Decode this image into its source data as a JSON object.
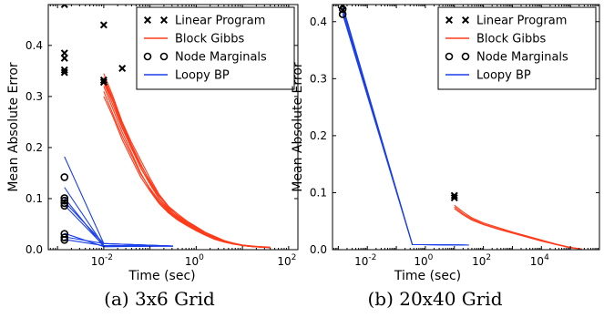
{
  "colors": {
    "linear_program": "#000000",
    "block_gibbs": "#ff3b1a",
    "node_marginals": "#000000",
    "loopy_bp": "#1a3fe8"
  },
  "chart_data": [
    {
      "type": "line",
      "caption": "(a) 3x6 Grid",
      "xlabel": "Time (sec)",
      "ylabel": "Mean Absolute Error",
      "xscale": "log",
      "xlim_log10": [
        -3.2,
        2.2
      ],
      "ylim": [
        0,
        0.48
      ],
      "xticks": [
        {
          "v": -2,
          "base": "10",
          "exp": "-2"
        },
        {
          "v": 0,
          "base": "10",
          "exp": "0"
        },
        {
          "v": 2,
          "base": "10",
          "exp": "2"
        }
      ],
      "yticks": [
        {
          "v": 0.0,
          "label": "0.0"
        },
        {
          "v": 0.1,
          "label": "0.1"
        },
        {
          "v": 0.2,
          "label": "0.2"
        },
        {
          "v": 0.3,
          "label": "0.3"
        },
        {
          "v": 0.4,
          "label": "0.4"
        }
      ],
      "legend": {
        "position": "top-right",
        "entries": [
          {
            "key": "linear_program",
            "label": "Linear Program",
            "style": "x"
          },
          {
            "key": "block_gibbs",
            "label": "Block Gibbs",
            "style": "line"
          },
          {
            "key": "node_marginals",
            "label": "Node Marginals",
            "style": "o"
          },
          {
            "key": "loopy_bp",
            "label": "Loopy BP",
            "style": "line"
          }
        ]
      },
      "linear_program": [
        [
          -2.85,
          0.48
        ],
        [
          -2.85,
          0.385
        ],
        [
          -2.85,
          0.375
        ],
        [
          -2.85,
          0.352
        ],
        [
          -2.85,
          0.347
        ],
        [
          -2.0,
          0.44
        ],
        [
          -2.0,
          0.332
        ],
        [
          -2.0,
          0.328
        ],
        [
          -1.6,
          0.355
        ]
      ],
      "node_marginals": [
        [
          -2.85,
          0.142
        ],
        [
          -2.85,
          0.101
        ],
        [
          -2.85,
          0.096
        ],
        [
          -2.85,
          0.091
        ],
        [
          -2.85,
          0.086
        ],
        [
          -2.85,
          0.031
        ],
        [
          -2.85,
          0.024
        ],
        [
          -2.85,
          0.019
        ]
      ],
      "loopy_bp": {
        "start_x": -2.85,
        "starts": [
          0.182,
          0.122,
          0.101,
          0.094,
          0.087,
          0.032,
          0.025,
          0.02
        ],
        "mid_x": -2.0,
        "mid_ys": [
          0.012,
          0.008,
          0.006
        ],
        "end_x": -0.5,
        "end_y": 0.007
      },
      "block_gibbs": {
        "x": [
          -2.0,
          -1.8,
          -1.6,
          -1.4,
          -1.2,
          -1.0,
          -0.8,
          -0.6,
          -0.4,
          -0.2,
          0.0,
          0.2,
          0.4,
          0.6,
          0.8,
          1.0,
          1.2,
          1.4,
          1.6
        ],
        "series": [
          [
            0.33,
            0.29,
            0.24,
            0.2,
            0.16,
            0.13,
            0.1,
            0.08,
            0.062,
            0.05,
            0.04,
            0.03,
            0.022,
            0.016,
            0.012,
            0.008,
            0.006,
            0.005,
            0.004
          ],
          [
            0.345,
            0.3,
            0.25,
            0.21,
            0.175,
            0.14,
            0.108,
            0.085,
            0.07,
            0.056,
            0.045,
            0.034,
            0.026,
            0.018,
            0.013,
            0.009,
            0.007,
            0.005,
            0.005
          ],
          [
            0.32,
            0.275,
            0.23,
            0.19,
            0.15,
            0.118,
            0.092,
            0.074,
            0.06,
            0.048,
            0.038,
            0.029,
            0.021,
            0.015,
            0.011,
            0.008,
            0.006,
            0.005,
            0.004
          ],
          [
            0.338,
            0.295,
            0.248,
            0.205,
            0.168,
            0.132,
            0.104,
            0.084,
            0.066,
            0.053,
            0.043,
            0.033,
            0.024,
            0.017,
            0.012,
            0.009,
            0.007,
            0.006,
            0.005
          ],
          [
            0.31,
            0.265,
            0.222,
            0.185,
            0.148,
            0.12,
            0.095,
            0.076,
            0.061,
            0.049,
            0.039,
            0.03,
            0.022,
            0.016,
            0.012,
            0.008,
            0.006,
            0.005,
            0.004
          ],
          [
            0.327,
            0.283,
            0.238,
            0.198,
            0.16,
            0.128,
            0.099,
            0.078,
            0.064,
            0.051,
            0.041,
            0.031,
            0.023,
            0.016,
            0.012,
            0.008,
            0.006,
            0.005,
            0.004
          ],
          [
            0.3,
            0.26,
            0.215,
            0.178,
            0.142,
            0.115,
            0.09,
            0.072,
            0.058,
            0.047,
            0.037,
            0.028,
            0.02,
            0.015,
            0.011,
            0.008,
            0.006,
            0.005,
            0.004
          ],
          [
            0.335,
            0.292,
            0.245,
            0.202,
            0.165,
            0.135,
            0.106,
            0.082,
            0.067,
            0.054,
            0.044,
            0.032,
            0.024,
            0.017,
            0.012,
            0.009,
            0.007,
            0.005,
            0.004
          ]
        ]
      }
    },
    {
      "type": "line",
      "caption": "(b) 20x40 Grid",
      "xlabel": "Time (sec)",
      "ylabel": "Mean Absolute Error",
      "xscale": "log",
      "xlim_log10": [
        -3.2,
        6.0
      ],
      "ylim": [
        0,
        0.43
      ],
      "xticks": [
        {
          "v": -2,
          "base": "10",
          "exp": "-2"
        },
        {
          "v": 0,
          "base": "10",
          "exp": "0"
        },
        {
          "v": 2,
          "base": "10",
          "exp": "2"
        },
        {
          "v": 4,
          "base": "10",
          "exp": "4"
        }
      ],
      "yticks": [
        {
          "v": 0.0,
          "label": "0.0"
        },
        {
          "v": 0.1,
          "label": "0.1"
        },
        {
          "v": 0.2,
          "label": "0.2"
        },
        {
          "v": 0.3,
          "label": "0.3"
        },
        {
          "v": 0.4,
          "label": "0.4"
        }
      ],
      "legend": {
        "position": "top-right",
        "entries": [
          {
            "key": "linear_program",
            "label": "Linear Program",
            "style": "x"
          },
          {
            "key": "block_gibbs",
            "label": "Block Gibbs",
            "style": "line"
          },
          {
            "key": "node_marginals",
            "label": "Node Marginals",
            "style": "o"
          },
          {
            "key": "loopy_bp",
            "label": "Loopy BP",
            "style": "line"
          }
        ]
      },
      "linear_program": [
        [
          -2.85,
          0.428
        ],
        [
          -2.85,
          0.42
        ],
        [
          1.0,
          0.095
        ],
        [
          1.0,
          0.091
        ]
      ],
      "node_marginals": [
        [
          -2.85,
          0.422
        ],
        [
          -2.85,
          0.413
        ]
      ],
      "loopy_bp": {
        "start_x": -2.85,
        "starts": [
          0.428,
          0.424,
          0.418,
          0.413
        ],
        "mid_x": -0.45,
        "mid_ys": [
          0.009
        ],
        "end_x": 1.5,
        "end_y": 0.008
      },
      "block_gibbs": {
        "x": [
          1.0,
          1.3,
          1.6,
          2.0,
          2.5,
          3.0,
          3.5,
          4.0,
          4.5,
          5.0,
          5.4
        ],
        "series": [
          [
            0.078,
            0.066,
            0.056,
            0.047,
            0.039,
            0.031,
            0.024,
            0.017,
            0.01,
            0.004,
            0.001
          ],
          [
            0.072,
            0.061,
            0.052,
            0.044,
            0.036,
            0.029,
            0.022,
            0.015,
            0.009,
            0.003,
            0.001
          ],
          [
            0.075,
            0.063,
            0.054,
            0.045,
            0.037,
            0.03,
            0.023,
            0.016,
            0.009,
            0.004,
            0.001
          ]
        ]
      }
    }
  ]
}
